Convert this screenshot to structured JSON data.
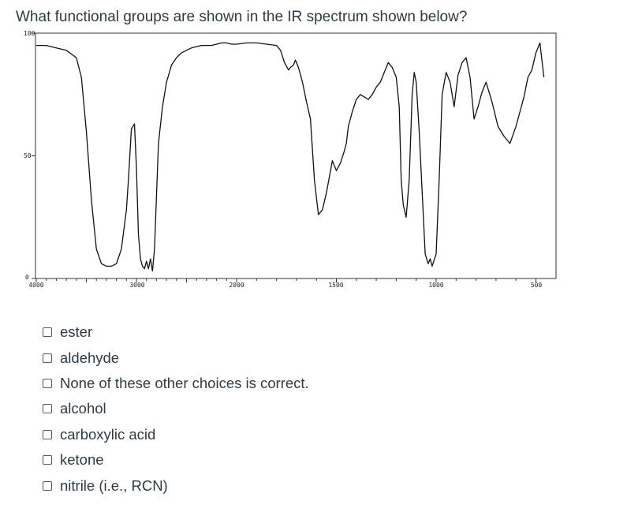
{
  "question": "What functional groups are shown in the IR spectrum shown below?",
  "spectrum": {
    "y_labels": [
      "100",
      "50",
      "0"
    ],
    "x_labels": [
      "4000",
      "3000",
      "2000",
      "1500",
      "1000",
      "500"
    ]
  },
  "chart_data": {
    "type": "line",
    "title": "",
    "xlabel": "",
    "ylabel": "",
    "xlim": [
      4000,
      450
    ],
    "ylim": [
      0,
      100
    ],
    "x_ticks": [
      4000,
      3000,
      2000,
      1500,
      1000,
      500
    ],
    "y_ticks": [
      0,
      50,
      100
    ],
    "grid": false,
    "series": [
      {
        "x": [
          4000,
          3950,
          3900,
          3800,
          3700,
          3600,
          3550,
          3500,
          3450,
          3400,
          3350,
          3300,
          3250,
          3200,
          3150,
          3100,
          3080,
          3050,
          3020,
          3000,
          2980,
          2960,
          2940,
          2920,
          2900,
          2880,
          2860,
          2840,
          2820,
          2780,
          2740,
          2700,
          2650,
          2600,
          2550,
          2500,
          2450,
          2400,
          2350,
          2300,
          2250,
          2200,
          2150,
          2100,
          2050,
          2000,
          1950,
          1900,
          1850,
          1800,
          1780,
          1760,
          1740,
          1730,
          1715,
          1705,
          1700,
          1690,
          1670,
          1650,
          1630,
          1610,
          1590,
          1570,
          1550,
          1520,
          1500,
          1480,
          1460,
          1450,
          1440,
          1420,
          1400,
          1380,
          1360,
          1340,
          1320,
          1300,
          1280,
          1260,
          1240,
          1220,
          1200,
          1185,
          1175,
          1165,
          1150,
          1135,
          1120,
          1110,
          1100,
          1085,
          1070,
          1055,
          1040,
          1030,
          1020,
          1000,
          985,
          970,
          950,
          930,
          910,
          890,
          870,
          850,
          830,
          810,
          790,
          770,
          750,
          720,
          690,
          660,
          630,
          600,
          580,
          560,
          540,
          520,
          500,
          480,
          460
        ],
        "y": [
          95,
          95,
          95,
          94,
          93,
          90,
          82,
          60,
          32,
          12,
          6,
          5,
          5,
          6,
          12,
          28,
          40,
          61,
          63,
          45,
          18,
          8,
          5,
          4,
          7,
          4,
          8,
          3,
          12,
          55,
          70,
          80,
          87,
          90,
          92,
          93,
          94,
          94.5,
          95,
          95,
          95,
          95.5,
          96,
          96,
          95.5,
          95.5,
          96,
          96,
          95.5,
          95,
          93,
          88,
          85,
          86,
          87,
          89,
          88,
          86,
          80,
          72,
          65,
          40,
          26,
          28,
          35,
          48,
          44,
          47,
          52,
          55,
          62,
          68,
          73,
          75,
          74,
          73,
          75,
          78,
          80,
          84,
          88,
          86,
          82,
          70,
          40,
          30,
          25,
          40,
          75,
          84,
          80,
          60,
          35,
          10,
          6,
          8,
          5,
          10,
          40,
          75,
          84,
          80,
          70,
          83,
          88,
          90,
          82,
          65,
          70,
          76,
          80,
          72,
          62,
          58,
          55,
          62,
          68,
          74,
          82,
          85,
          92,
          96,
          82
        ]
      }
    ]
  },
  "answers": [
    "ester",
    "aldehyde",
    "None of these other choices is correct.",
    "alcohol",
    "carboxylic acid",
    "ketone",
    "nitrile (i.e., RCN)"
  ]
}
